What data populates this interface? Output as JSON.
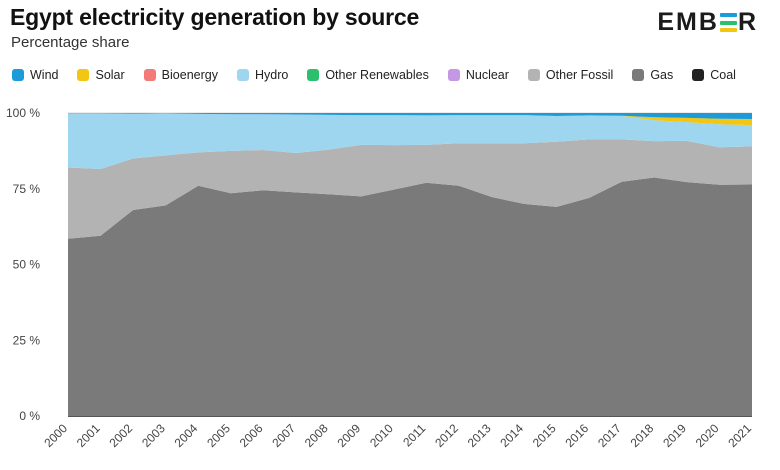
{
  "header": {
    "title": "Egypt electricity generation by source",
    "subtitle": "Percentage share",
    "brand": "EMBER",
    "brand_colors": [
      "#1b9bd8",
      "#2bbf6e",
      "#f2c612"
    ]
  },
  "chart_data": {
    "type": "area",
    "stacked": true,
    "x": [
      "2000",
      "2001",
      "2002",
      "2003",
      "2004",
      "2005",
      "2006",
      "2007",
      "2008",
      "2009",
      "2010",
      "2011",
      "2012",
      "2013",
      "2014",
      "2015",
      "2016",
      "2017",
      "2018",
      "2019",
      "2020",
      "2021"
    ],
    "ylim": [
      0,
      100
    ],
    "y_ticks": [
      "0 %",
      "25 %",
      "50 %",
      "75 %",
      "100 %"
    ],
    "grid": true,
    "legend_position": "top",
    "legend_order": [
      "Wind",
      "Solar",
      "Bioenergy",
      "Hydro",
      "Other Renewables",
      "Nuclear",
      "Other Fossil",
      "Gas",
      "Coal"
    ],
    "series": [
      {
        "name": "Coal",
        "color": "#222222",
        "values": [
          0,
          0,
          0,
          0,
          0,
          0,
          0,
          0,
          0,
          0,
          0,
          0,
          0,
          0,
          0,
          0,
          0,
          0,
          0,
          0,
          0,
          0
        ]
      },
      {
        "name": "Gas",
        "color": "#7a7a7a",
        "values": [
          58.5,
          59.5,
          68,
          69.5,
          76,
          73.5,
          74.5,
          73.8,
          73.2,
          72.5,
          74.7,
          77,
          76,
          72.3,
          70,
          69,
          72,
          77.3,
          78.7,
          77.2,
          76.3,
          76.4
        ]
      },
      {
        "name": "Other Fossil",
        "color": "#b3b3b3",
        "values": [
          23.5,
          22,
          17,
          16.5,
          11,
          14,
          13.3,
          13,
          14.7,
          17,
          14.7,
          12.5,
          14,
          17.7,
          20,
          21.5,
          19.3,
          14,
          12,
          13.6,
          12.4,
          12.6
        ]
      },
      {
        "name": "Nuclear",
        "color": "#c598e6",
        "values": [
          0,
          0,
          0,
          0,
          0,
          0,
          0,
          0,
          0,
          0,
          0,
          0,
          0,
          0,
          0,
          0,
          0,
          0,
          0,
          0,
          0,
          0
        ]
      },
      {
        "name": "Other Renewables",
        "color": "#2bbf6e",
        "values": [
          0,
          0,
          0,
          0,
          0,
          0,
          0,
          0,
          0,
          0,
          0,
          0,
          0,
          0,
          0,
          0,
          0,
          0,
          0,
          0,
          0,
          0
        ]
      },
      {
        "name": "Hydro",
        "color": "#9ed6f0",
        "values": [
          17.9,
          18.4,
          14.8,
          13.9,
          12.7,
          12.1,
          11.8,
          12.7,
          11.5,
          9.8,
          9.9,
          9.7,
          9.3,
          9.3,
          9.3,
          8.5,
          7.9,
          7.8,
          6.9,
          6.2,
          7.6,
          7.0
        ]
      },
      {
        "name": "Bioenergy",
        "color": "#f47a7a",
        "values": [
          0,
          0,
          0,
          0,
          0,
          0,
          0,
          0,
          0,
          0,
          0,
          0,
          0,
          0,
          0,
          0,
          0,
          0,
          0,
          0,
          0,
          0
        ]
      },
      {
        "name": "Solar",
        "color": "#f2c612",
        "values": [
          0,
          0,
          0,
          0,
          0,
          0,
          0,
          0,
          0,
          0,
          0,
          0,
          0,
          0,
          0,
          0,
          0,
          0,
          1.0,
          1.4,
          1.8,
          2.0
        ]
      },
      {
        "name": "Wind",
        "color": "#1b9bd8",
        "values": [
          0.1,
          0.1,
          0.2,
          0.1,
          0.3,
          0.4,
          0.4,
          0.5,
          0.6,
          0.7,
          0.7,
          0.8,
          0.7,
          0.7,
          0.7,
          1.0,
          0.8,
          0.9,
          1.4,
          1.6,
          1.9,
          2.0
        ]
      }
    ]
  }
}
